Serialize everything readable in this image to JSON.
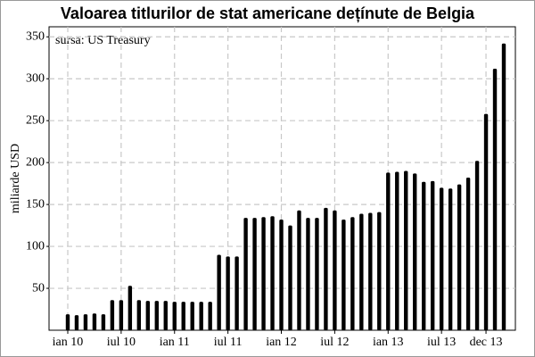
{
  "chart_data": {
    "type": "bar",
    "title": "Valoarea titlurilor de stat americane dețínute de Belgia",
    "annotation": "sursa: US Treasury",
    "y_label": "miliarde USD",
    "categories": [
      "ian 10",
      null,
      null,
      null,
      null,
      null,
      "iul 10",
      null,
      null,
      null,
      null,
      null,
      "ian 11",
      null,
      null,
      null,
      null,
      null,
      "iul 11",
      null,
      null,
      null,
      null,
      null,
      "ian 12",
      null,
      null,
      null,
      null,
      null,
      "iul 12",
      null,
      null,
      null,
      null,
      null,
      "ian 13",
      null,
      null,
      null,
      null,
      null,
      "iul 13",
      null,
      null,
      null,
      null,
      "dec 13",
      null,
      null
    ],
    "values": [
      19,
      18,
      19,
      20,
      19,
      36,
      36,
      53,
      36,
      35,
      35,
      35,
      34,
      34,
      34,
      34,
      34,
      90,
      88,
      88,
      134,
      134,
      135,
      136,
      132,
      125,
      143,
      134,
      134,
      146,
      143,
      132,
      135,
      139,
      140,
      141,
      188,
      189,
      190,
      187,
      177,
      178,
      170,
      169,
      174,
      182,
      202,
      258,
      312,
      342
    ],
    "color": "#000000",
    "ylim": [
      0,
      362
    ],
    "yticks": [
      50,
      100,
      150,
      200,
      250,
      300,
      350
    ],
    "grid": true
  }
}
